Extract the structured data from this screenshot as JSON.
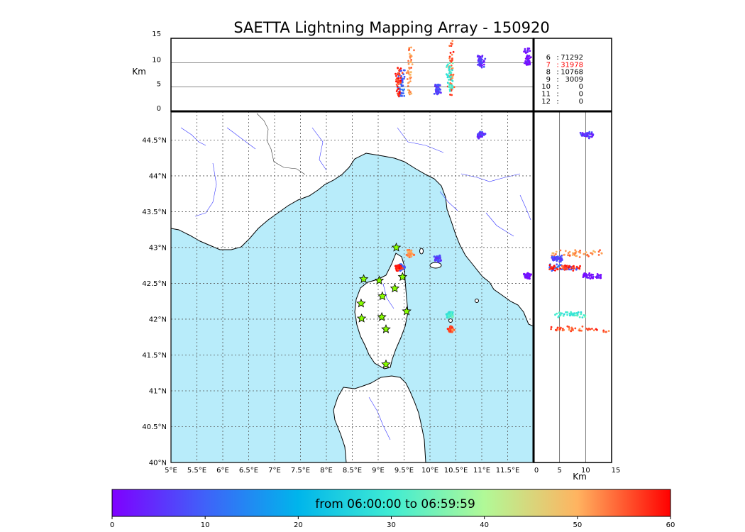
{
  "chart_data": {
    "type": "scatter",
    "title": "SAETTA Lightning Mapping Array - 150920",
    "time_range_label": "from 06:00:00 to 06:59:59",
    "altitude_unit_label": "Km",
    "altitude_ticks": [
      "0",
      "5",
      "10",
      "15"
    ],
    "altitude_range": [
      0,
      15
    ],
    "lon_range": [
      5,
      12.0
    ],
    "lat_range": [
      40,
      44.9
    ],
    "lon_ticks": [
      {
        "v": 5,
        "label": "5°E"
      },
      {
        "v": 5.5,
        "label": "5.5°E"
      },
      {
        "v": 6,
        "label": "6°E"
      },
      {
        "v": 6.5,
        "label": "6.5°E"
      },
      {
        "v": 7,
        "label": "7°E"
      },
      {
        "v": 7.5,
        "label": "7.5°E"
      },
      {
        "v": 8,
        "label": "8°E"
      },
      {
        "v": 8.5,
        "label": "8.5°E"
      },
      {
        "v": 9,
        "label": "9°E"
      },
      {
        "v": 9.5,
        "label": "9.5°E"
      },
      {
        "v": 10,
        "label": "10°E"
      },
      {
        "v": 10.5,
        "label": "10.5°E"
      },
      {
        "v": 11,
        "label": "11°E"
      },
      {
        "v": 11.5,
        "label": "11.5°E"
      }
    ],
    "lat_ticks": [
      {
        "v": 40,
        "label": "40°N"
      },
      {
        "v": 40.5,
        "label": "40.5°N"
      },
      {
        "v": 41,
        "label": "41°N"
      },
      {
        "v": 41.5,
        "label": "41.5°N"
      },
      {
        "v": 42,
        "label": "42°N"
      },
      {
        "v": 42.5,
        "label": "42.5°N"
      },
      {
        "v": 43,
        "label": "43°N"
      },
      {
        "v": 43.5,
        "label": "43.5°N"
      },
      {
        "v": 44,
        "label": "44°N"
      },
      {
        "v": 44.5,
        "label": "44.5°N"
      }
    ],
    "station_counts": [
      {
        "stations": "6",
        "count": "71292",
        "highlight": false
      },
      {
        "stations": "7",
        "count": "31978",
        "highlight": true
      },
      {
        "stations": "8",
        "count": "10768",
        "highlight": false
      },
      {
        "stations": "9",
        "count": "3009",
        "highlight": false
      },
      {
        "stations": "10",
        "count": "0",
        "highlight": false
      },
      {
        "stations": "11",
        "count": "0",
        "highlight": false
      },
      {
        "stations": "12",
        "count": "0",
        "highlight": false
      }
    ],
    "highlight_color": "#ff0000",
    "stations": [
      {
        "lon": 9.35,
        "lat": 43.0
      },
      {
        "lon": 8.72,
        "lat": 42.56
      },
      {
        "lon": 9.02,
        "lat": 42.54
      },
      {
        "lon": 9.47,
        "lat": 42.59
      },
      {
        "lon": 9.32,
        "lat": 42.43
      },
      {
        "lon": 9.08,
        "lat": 42.32
      },
      {
        "lon": 8.67,
        "lat": 42.22
      },
      {
        "lon": 9.55,
        "lat": 42.11
      },
      {
        "lon": 8.68,
        "lat": 42.01
      },
      {
        "lon": 9.07,
        "lat": 42.03
      },
      {
        "lon": 9.15,
        "lat": 41.86
      },
      {
        "lon": 9.15,
        "lat": 41.37
      }
    ],
    "lightning_clusters": [
      {
        "lon": 9.62,
        "lat": 42.92,
        "alt_min": 3.5,
        "alt_max": 13.5,
        "minute": 52
      },
      {
        "lon": 9.45,
        "lat": 42.72,
        "alt_min": 3.0,
        "alt_max": 8.5,
        "minute": 10
      },
      {
        "lon": 9.4,
        "lat": 42.72,
        "alt_min": 3.0,
        "alt_max": 9.0,
        "minute": 58
      },
      {
        "lon": 10.15,
        "lat": 42.85,
        "alt_min": 3.5,
        "alt_max": 5.5,
        "minute": 8
      },
      {
        "lon": 10.4,
        "lat": 41.86,
        "alt_min": 3.0,
        "alt_max": 14.5,
        "minute": 55
      },
      {
        "lon": 10.38,
        "lat": 42.07,
        "alt_min": 4.0,
        "alt_max": 10.0,
        "minute": 30
      },
      {
        "lon": 11.88,
        "lat": 42.6,
        "alt_min": 9.5,
        "alt_max": 13.0,
        "minute": 2
      },
      {
        "lon": 10.98,
        "lat": 44.57,
        "alt_min": 9.0,
        "alt_max": 11.5,
        "minute": 5
      }
    ],
    "colorbar": {
      "label": "from 06:00:00 to 06:59:59",
      "range": [
        0,
        60
      ],
      "ticks": [
        "0",
        "10",
        "20",
        "30",
        "40",
        "50",
        "60"
      ],
      "colors": [
        "#7f00ff",
        "#3f62f9",
        "#00b5eb",
        "#40ecd3",
        "#b1f997",
        "#ffb360",
        "#ff0000"
      ]
    },
    "sea_color": "#b8ecfa",
    "land_color": "#ffffff",
    "station_color": "#88ff00"
  }
}
